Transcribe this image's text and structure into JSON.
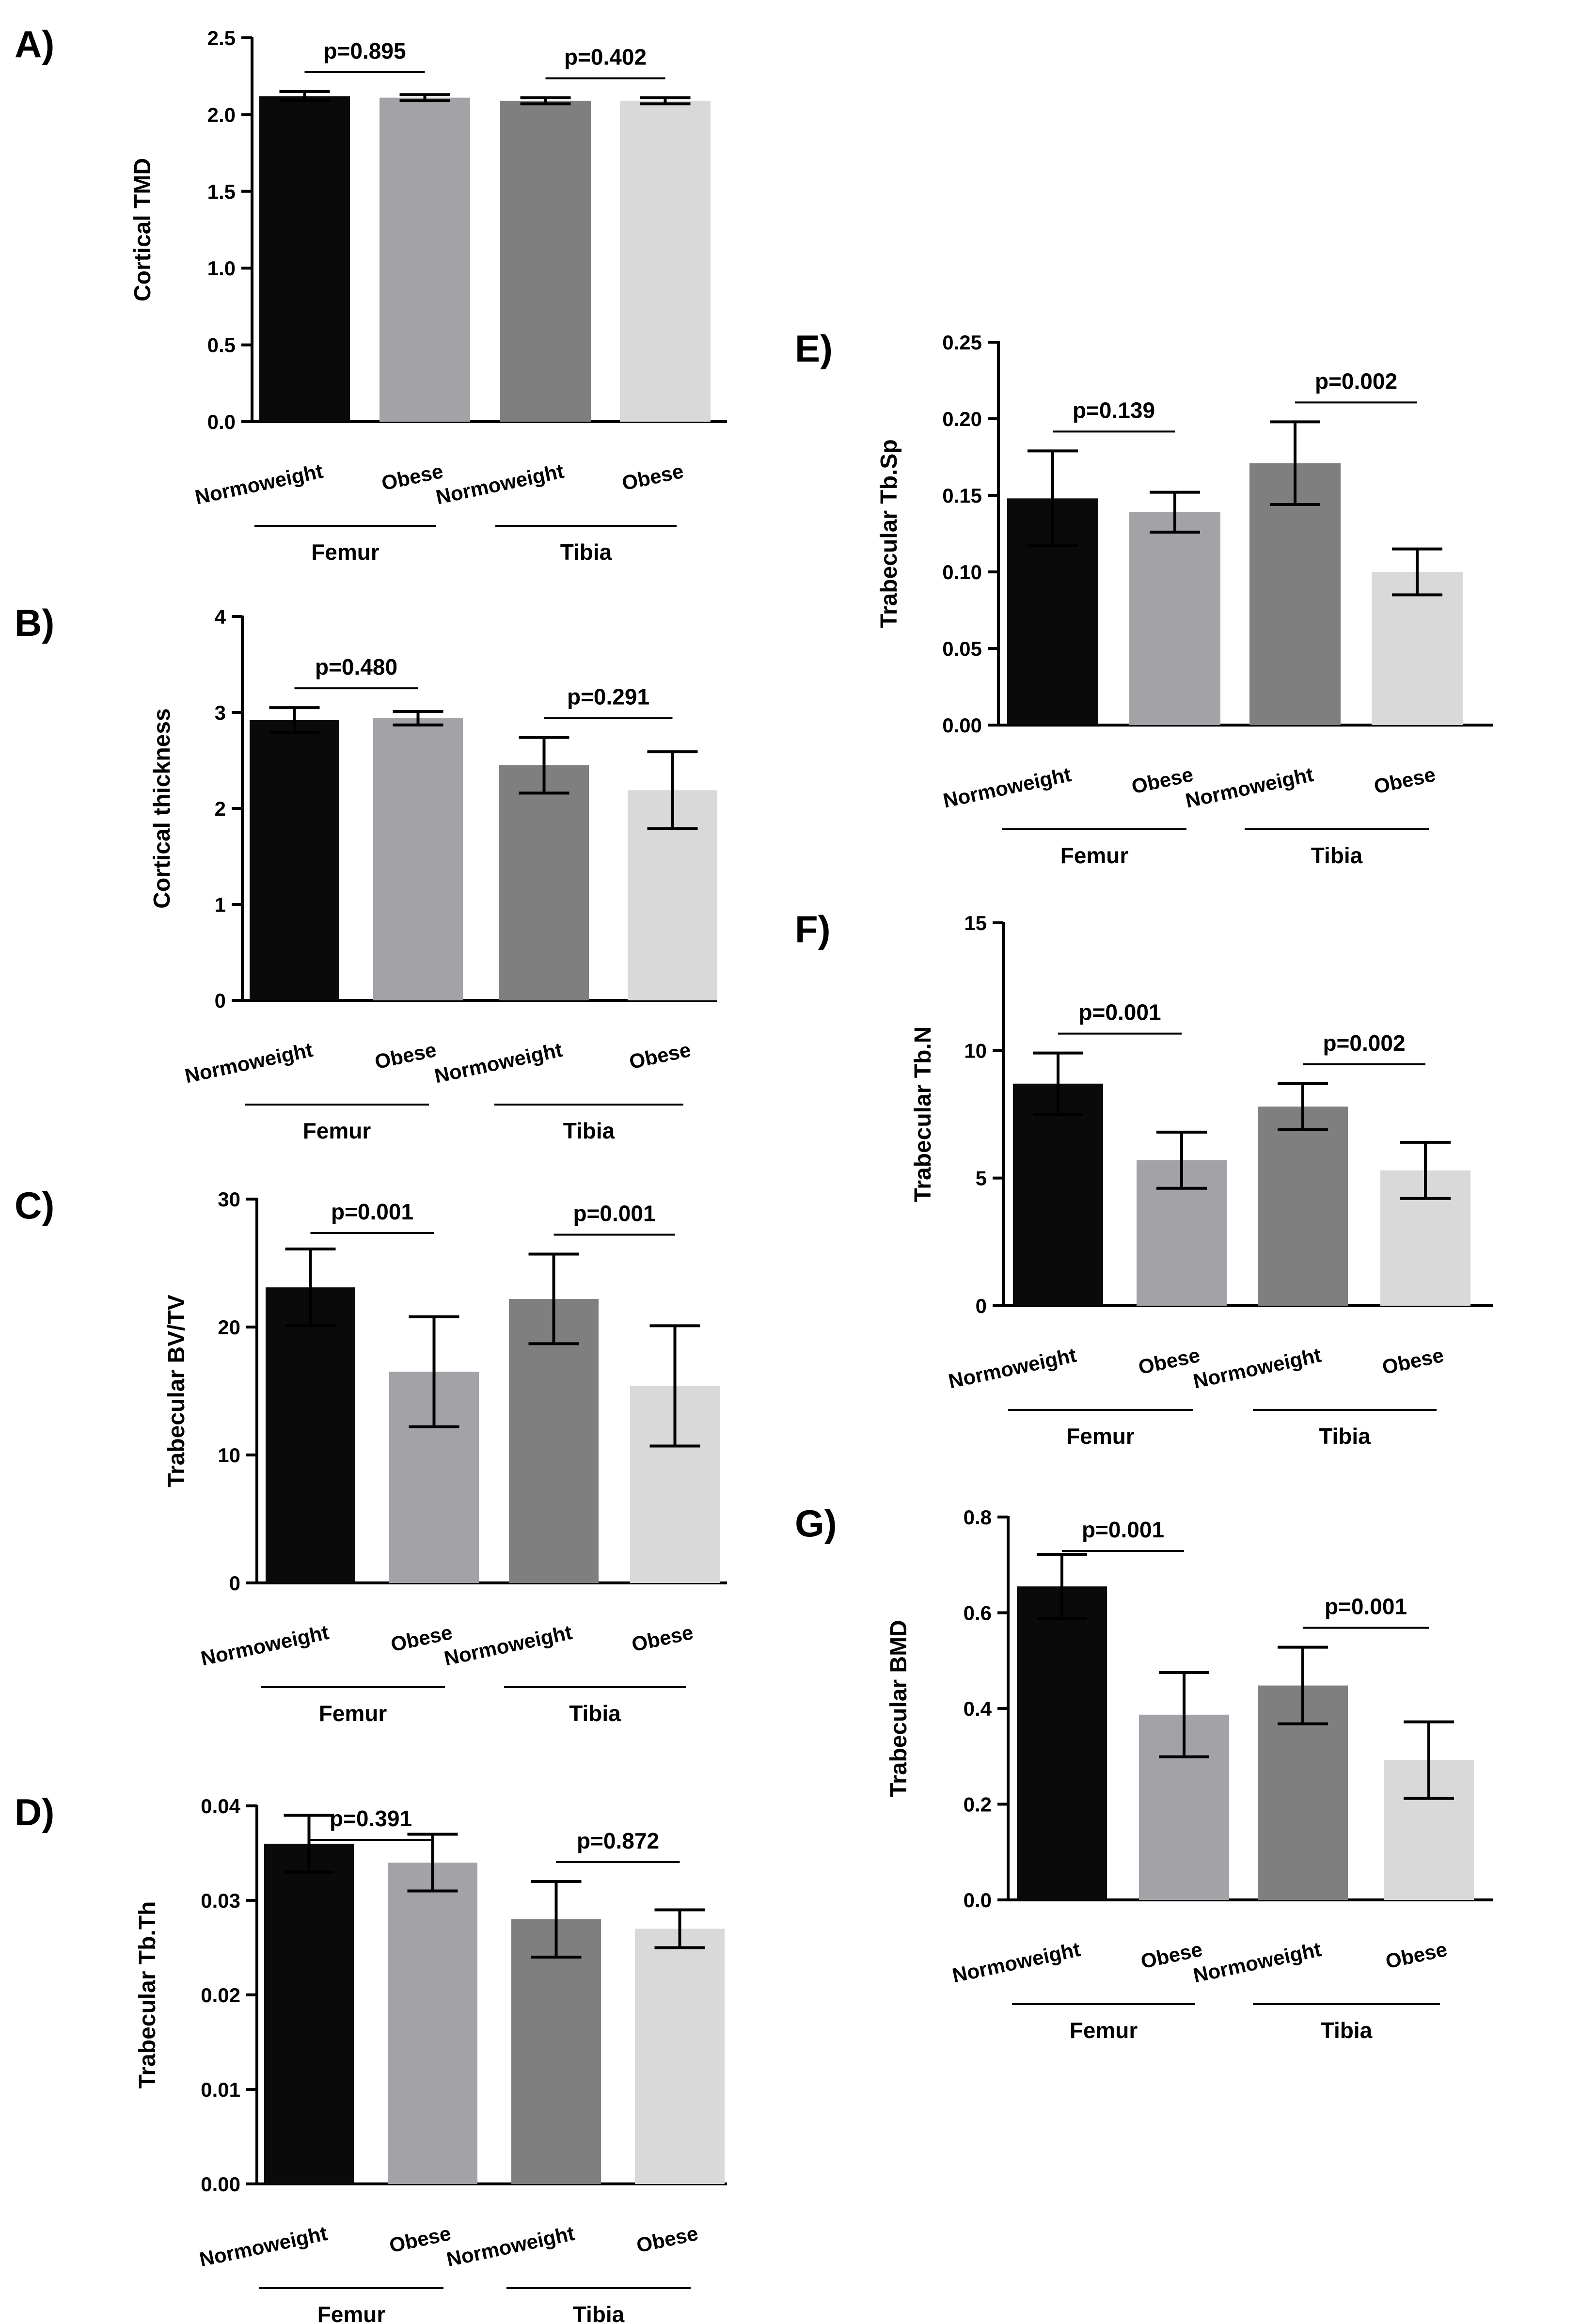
{
  "bar_colors": [
    "#0a0a0a",
    "#a3a2a7",
    "#7f7f7f",
    "#d9d9d9"
  ],
  "chart_data": [
    {
      "id": "A",
      "type": "bar",
      "panel_label": "A)",
      "ylabel": "Cortical TMD",
      "ylim": [
        0,
        2.5
      ],
      "yticks": [
        "0.0",
        "0.5",
        "1.0",
        "1.5",
        "2.0",
        "2.5"
      ],
      "categories": [
        "Normoweight",
        "Obese",
        "Normoweight",
        "Obese"
      ],
      "groups": [
        "Femur",
        "Tibia"
      ],
      "values": [
        2.12,
        2.11,
        2.09,
        2.09
      ],
      "errors": [
        0.03,
        0.02,
        0.02,
        0.02
      ],
      "pvalues": [
        "p=0.895",
        "p=0.402"
      ]
    },
    {
      "id": "B",
      "type": "bar",
      "panel_label": "B)",
      "ylabel": "Cortical thickness",
      "ylim": [
        0,
        4
      ],
      "yticks": [
        "0",
        "1",
        "2",
        "3",
        "4"
      ],
      "categories": [
        "Normoweight",
        "Obese",
        "Normoweight",
        "Obese"
      ],
      "groups": [
        "Femur",
        "Tibia"
      ],
      "values": [
        2.92,
        2.94,
        2.45,
        2.19
      ],
      "errors": [
        0.13,
        0.07,
        0.29,
        0.4
      ],
      "pvalues": [
        "p=0.480",
        "p=0.291"
      ]
    },
    {
      "id": "C",
      "type": "bar",
      "panel_label": "C)",
      "ylabel": "Trabecular BV/TV",
      "ylim": [
        0,
        30
      ],
      "yticks": [
        "0",
        "10",
        "20",
        "30"
      ],
      "categories": [
        "Normoweight",
        "Obese",
        "Normoweight",
        "Obese"
      ],
      "groups": [
        "Femur",
        "Tibia"
      ],
      "values": [
        23.1,
        16.5,
        22.2,
        15.4
      ],
      "errors": [
        3.0,
        4.3,
        3.5,
        4.7
      ],
      "pvalues": [
        "p=0.001",
        "p=0.001"
      ]
    },
    {
      "id": "D",
      "type": "bar",
      "panel_label": "D)",
      "ylabel": "Trabecular Tb.Th",
      "ylim": [
        0,
        0.04
      ],
      "yticks": [
        "0.00",
        "0.01",
        "0.02",
        "0.03",
        "0.04"
      ],
      "categories": [
        "Normoweight",
        "Obese",
        "Normoweight",
        "Obese"
      ],
      "groups": [
        "Femur",
        "Tibia"
      ],
      "values": [
        0.036,
        0.034,
        0.028,
        0.027
      ],
      "errors": [
        0.003,
        0.003,
        0.004,
        0.002
      ],
      "pvalues": [
        "p=0.391",
        "p=0.872"
      ]
    },
    {
      "id": "E",
      "type": "bar",
      "panel_label": "E)",
      "ylabel": "Trabecular Tb.Sp",
      "ylim": [
        0,
        0.25
      ],
      "yticks": [
        "0.00",
        "0.05",
        "0.10",
        "0.15",
        "0.20",
        "0.25"
      ],
      "categories": [
        "Normoweight",
        "Obese",
        "Normoweight",
        "Obese"
      ],
      "groups": [
        "Femur",
        "Tibia"
      ],
      "values": [
        0.148,
        0.139,
        0.171,
        0.1
      ],
      "errors": [
        0.031,
        0.013,
        0.027,
        0.015
      ],
      "pvalues": [
        "p=0.139",
        "p=0.002"
      ]
    },
    {
      "id": "F",
      "type": "bar",
      "panel_label": "F)",
      "ylabel": "Trabecular Tb.N",
      "ylim": [
        0,
        15
      ],
      "yticks": [
        "0",
        "5",
        "10",
        "15"
      ],
      "categories": [
        "Normoweight",
        "Obese",
        "Normoweight",
        "Obese"
      ],
      "groups": [
        "Femur",
        "Tibia"
      ],
      "values": [
        8.7,
        5.7,
        7.8,
        5.3
      ],
      "errors": [
        1.2,
        1.1,
        0.9,
        1.1
      ],
      "pvalues": [
        "p=0.001",
        "p=0.002"
      ]
    },
    {
      "id": "G",
      "type": "bar",
      "panel_label": "G)",
      "ylabel": "Trabecular BMD",
      "ylim": [
        0,
        0.8
      ],
      "yticks": [
        "0.0",
        "0.2",
        "0.4",
        "0.6",
        "0.8"
      ],
      "categories": [
        "Normoweight",
        "Obese",
        "Normoweight",
        "Obese"
      ],
      "groups": [
        "Femur",
        "Tibia"
      ],
      "values": [
        0.655,
        0.387,
        0.448,
        0.292
      ],
      "errors": [
        0.067,
        0.088,
        0.08,
        0.08
      ],
      "pvalues": [
        "p=0.001",
        "p=0.001"
      ]
    }
  ]
}
